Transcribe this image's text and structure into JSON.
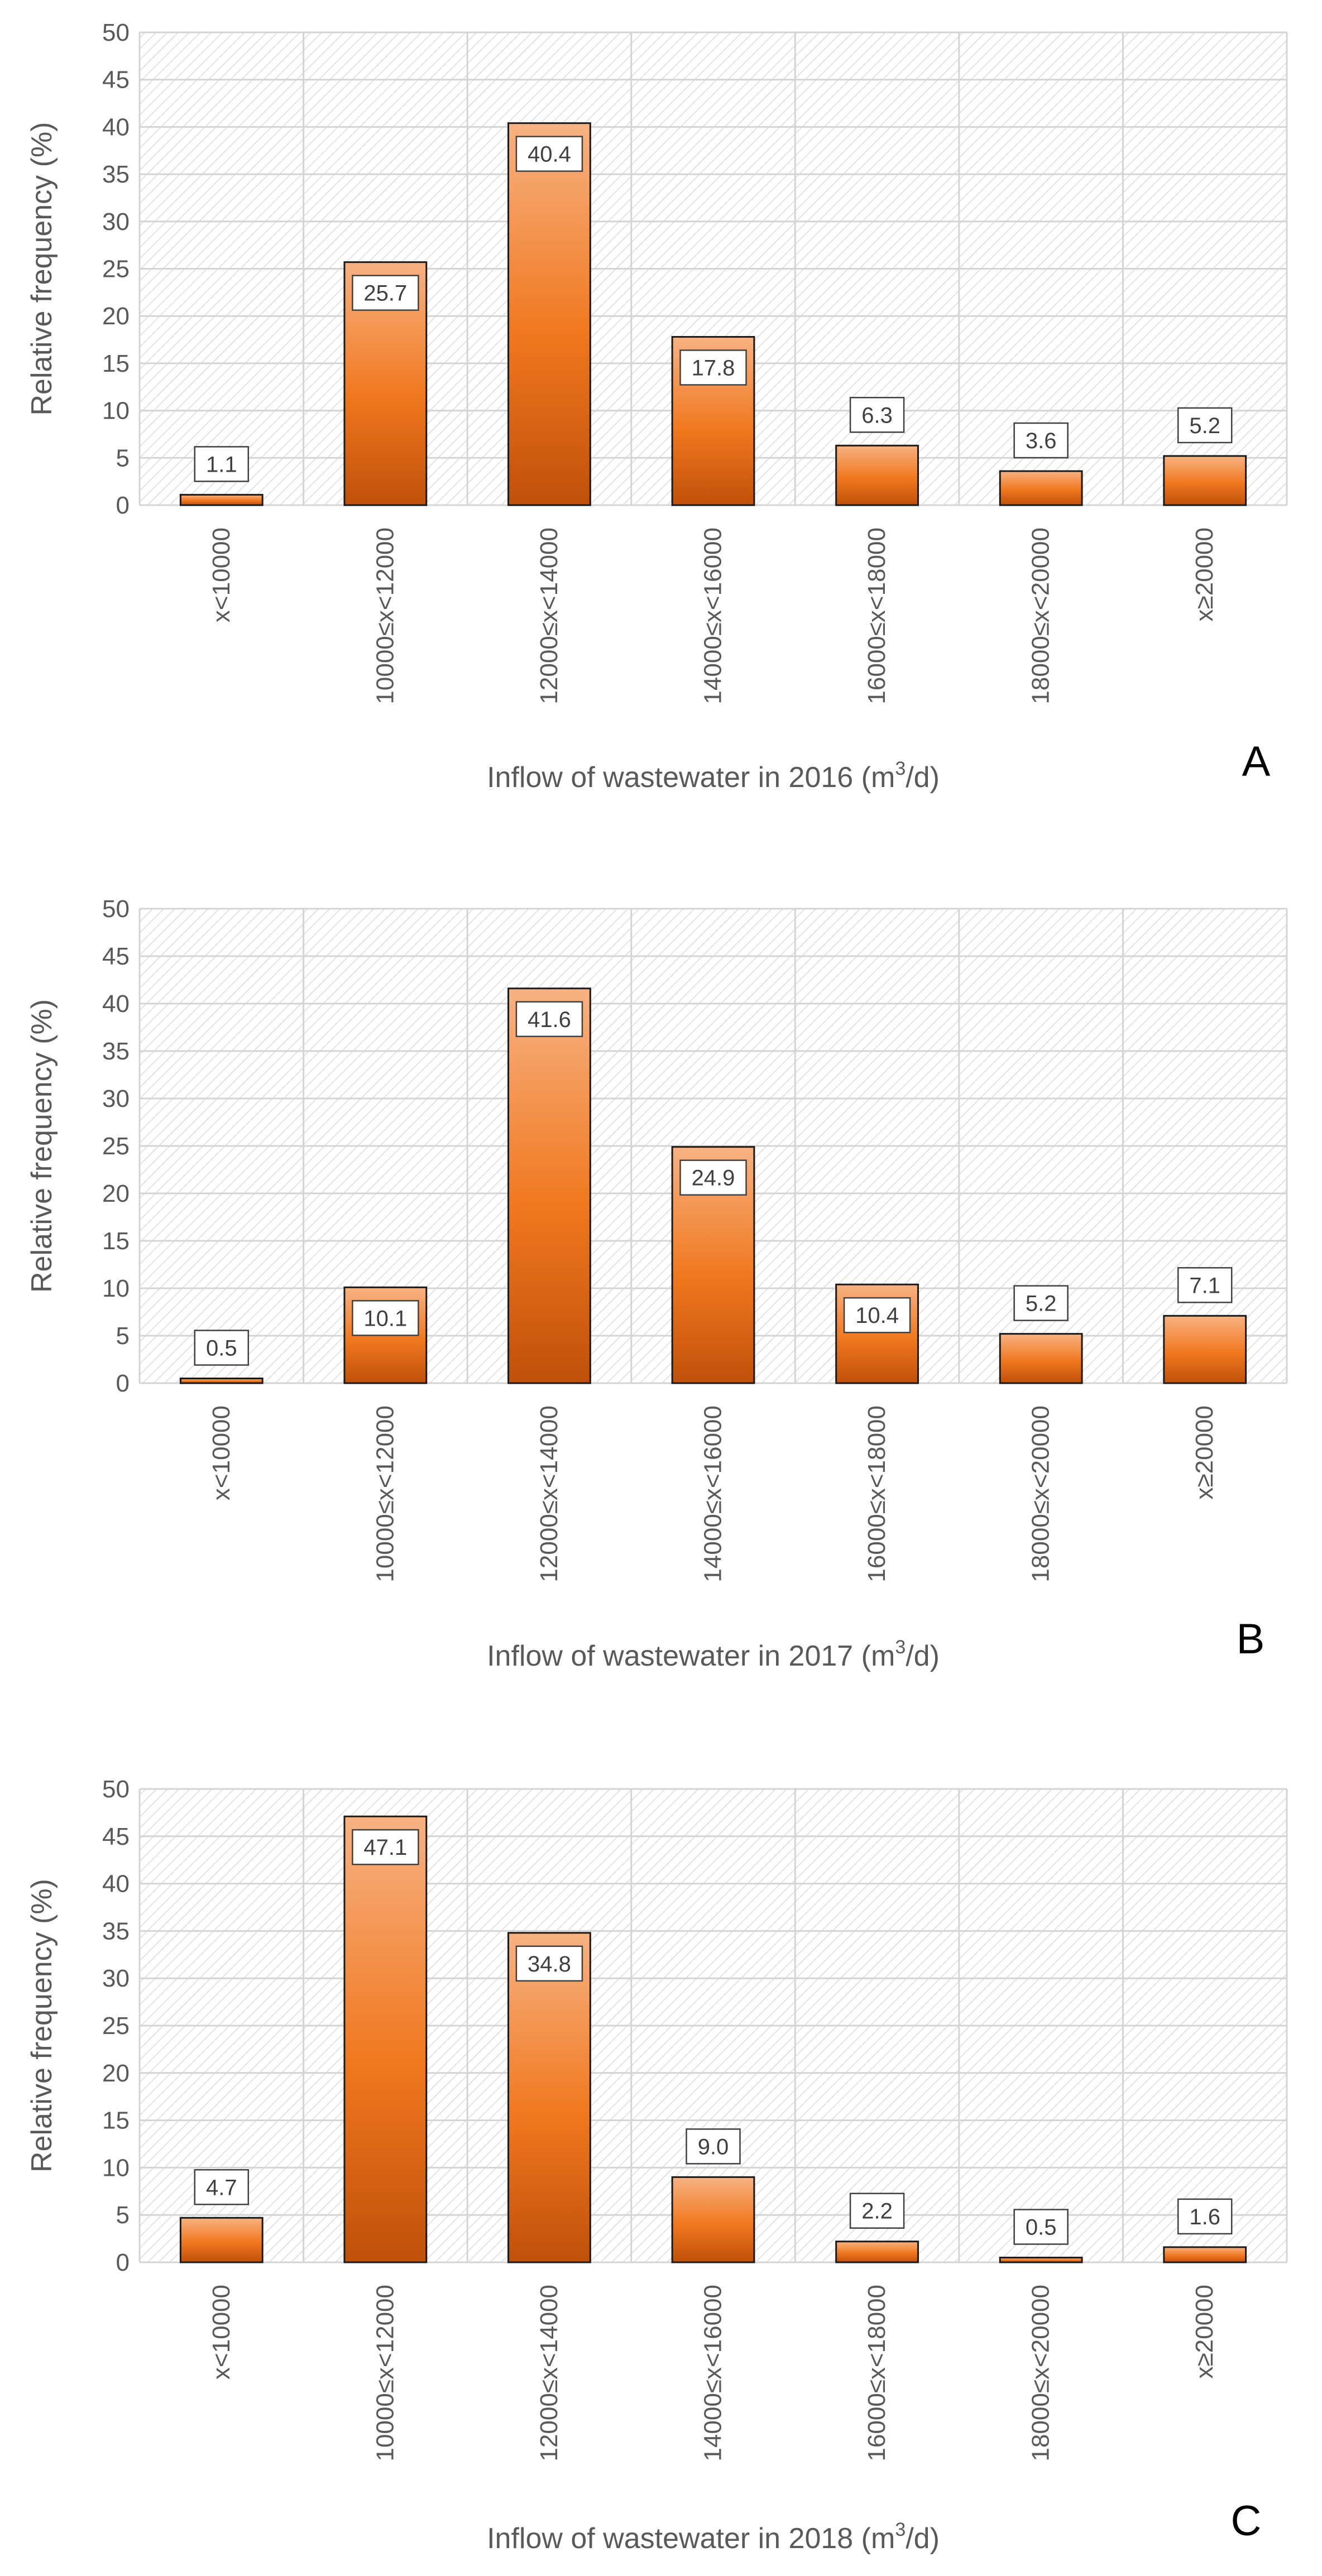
{
  "chart_data": [
    {
      "type": "bar",
      "panel_label": "A",
      "categories": [
        "x<10000",
        "10000≤x<12000",
        "12000≤x<14000",
        "14000≤x<16000",
        "16000≤x<18000",
        "18000≤x<20000",
        "x≥20000"
      ],
      "values": [
        1.1,
        25.7,
        40.4,
        17.8,
        6.3,
        3.6,
        5.2
      ],
      "data_labels": [
        "1.1",
        "25.7",
        "40.4",
        "17.8",
        "6.3",
        "3.6",
        "5.2"
      ],
      "xlabel": {
        "prefix": "Inflow of wastewater in 2016 (m",
        "sup": "3",
        "suffix": "/d)"
      },
      "ylabel": "Relative frequency (%)",
      "ylim": [
        0,
        50
      ],
      "yticks": [
        "0",
        "5",
        "10",
        "15",
        "20",
        "25",
        "30",
        "35",
        "40",
        "45",
        "50"
      ],
      "grid": true
    },
    {
      "type": "bar",
      "panel_label": "B",
      "categories": [
        "x<10000",
        "10000≤x<12000",
        "12000≤x<14000",
        "14000≤x<16000",
        "16000≤x<18000",
        "18000≤x<20000",
        "x≥20000"
      ],
      "values": [
        0.5,
        10.1,
        41.6,
        24.9,
        10.4,
        5.2,
        7.1
      ],
      "data_labels": [
        "0.5",
        "10.1",
        "41.6",
        "24.9",
        "10.4",
        "5.2",
        "7.1"
      ],
      "xlabel": {
        "prefix": "Inflow of wastewater in 2017 (m",
        "sup": "3",
        "suffix": "/d)"
      },
      "ylabel": "Relative frequency (%)",
      "ylim": [
        0,
        50
      ],
      "yticks": [
        "0",
        "5",
        "10",
        "15",
        "20",
        "25",
        "30",
        "35",
        "40",
        "45",
        "50"
      ],
      "grid": true
    },
    {
      "type": "bar",
      "panel_label": "C",
      "categories": [
        "x<10000",
        "10000≤x<12000",
        "12000≤x<14000",
        "14000≤x<16000",
        "16000≤x<18000",
        "18000≤x<20000",
        "x≥20000"
      ],
      "values": [
        4.7,
        47.1,
        34.8,
        9.0,
        2.2,
        0.5,
        1.6
      ],
      "data_labels": [
        "4.7",
        "47.1",
        "34.8",
        "9.0",
        "2.2",
        "0.5",
        "1.6"
      ],
      "xlabel": {
        "prefix": "Inflow of wastewater in 2018 (m",
        "sup": "3",
        "suffix": "/d)"
      },
      "ylabel": "Relative frequency (%)",
      "ylim": [
        0,
        50
      ],
      "yticks": [
        "0",
        "5",
        "10",
        "15",
        "20",
        "25",
        "30",
        "35",
        "40",
        "45",
        "50"
      ],
      "grid": true
    }
  ],
  "colors": {
    "bar_top": "#f7b283",
    "bar_mid": "#f0781f",
    "bar_bottom": "#c0500a",
    "bar_stroke": "#1a1a1a",
    "grid": "#d4d4d4",
    "hatch": "#dcdcdc",
    "text": "#595959"
  }
}
